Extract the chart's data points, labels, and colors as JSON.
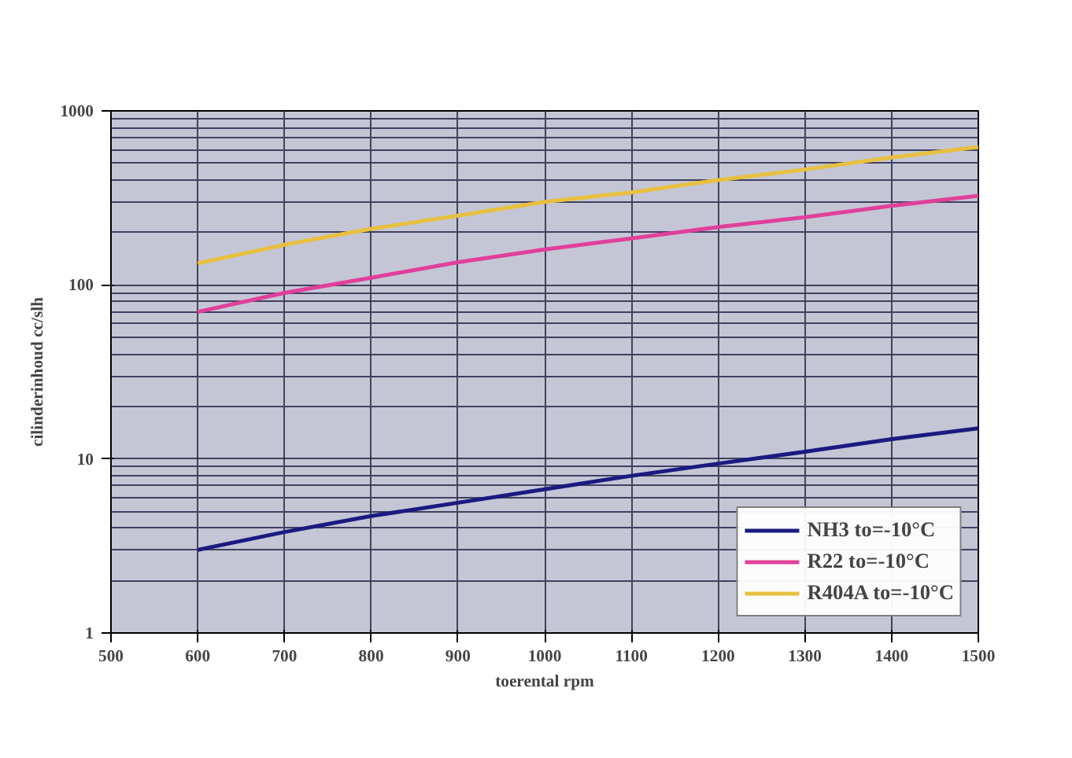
{
  "chart_data": {
    "type": "line",
    "xlabel": "toerental rpm",
    "ylabel": "cilinderinhoud cc/slh",
    "x": [
      600,
      700,
      800,
      900,
      1000,
      1100,
      1200,
      1300,
      1400,
      1500
    ],
    "series": [
      {
        "name": "NH3 to=-10°C",
        "color": "#1a1a80",
        "values": [
          3.0,
          3.8,
          4.7,
          5.6,
          6.7,
          8.0,
          9.4,
          11,
          13,
          15
        ]
      },
      {
        "name": "R22 to=-10°C",
        "color": "#e0409a",
        "values": [
          70,
          90,
          110,
          135,
          160,
          185,
          215,
          245,
          285,
          325
        ]
      },
      {
        "name": "R404A to=-10°C",
        "color": "#e8c040",
        "values": [
          133,
          170,
          210,
          250,
          300,
          340,
          400,
          460,
          540,
          620
        ]
      }
    ],
    "xlim": [
      500,
      1500
    ],
    "ylim": [
      1,
      1000
    ],
    "xticks": [
      500,
      600,
      700,
      800,
      900,
      1000,
      1100,
      1200,
      1300,
      1400,
      1500
    ],
    "yticks": [
      1,
      10,
      100,
      1000
    ],
    "log": "y",
    "grid": true,
    "legend": "bottom right",
    "marker": "none",
    "line_style": "solid"
  }
}
